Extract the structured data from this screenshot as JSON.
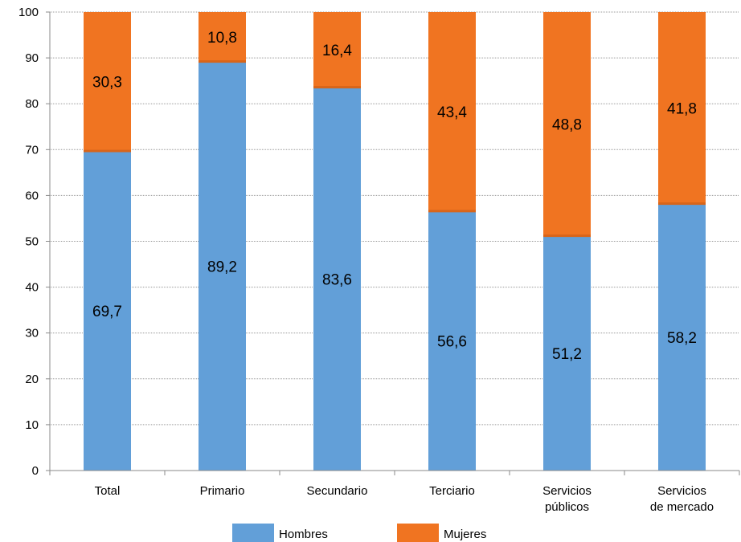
{
  "chart_data": {
    "type": "bar",
    "stacked": true,
    "categories": [
      [
        "Total"
      ],
      [
        "Primario"
      ],
      [
        "Secundario"
      ],
      [
        "Terciario"
      ],
      [
        "Servicios",
        "públicos"
      ],
      [
        "Servicios",
        "de mercado"
      ]
    ],
    "series": [
      {
        "name": "Hombres",
        "values": [
          69.7,
          89.2,
          83.6,
          56.6,
          51.2,
          58.2
        ],
        "labels": [
          "69,7",
          "89,2",
          "83,6",
          "56,6",
          "51,2",
          "58,2"
        ],
        "color": "#629fd8"
      },
      {
        "name": "Mujeres",
        "values": [
          30.3,
          10.8,
          16.4,
          43.4,
          48.8,
          41.8
        ],
        "labels": [
          "30,3",
          "10,8",
          "16,4",
          "43,4",
          "48,8",
          "41,8"
        ],
        "color": "#f07421"
      }
    ],
    "ylim": [
      0,
      100
    ],
    "yticks": [
      "0",
      "10",
      "20",
      "30",
      "40",
      "50",
      "60",
      "70",
      "80",
      "90",
      "100"
    ],
    "grid": true,
    "legend": "bottom"
  }
}
